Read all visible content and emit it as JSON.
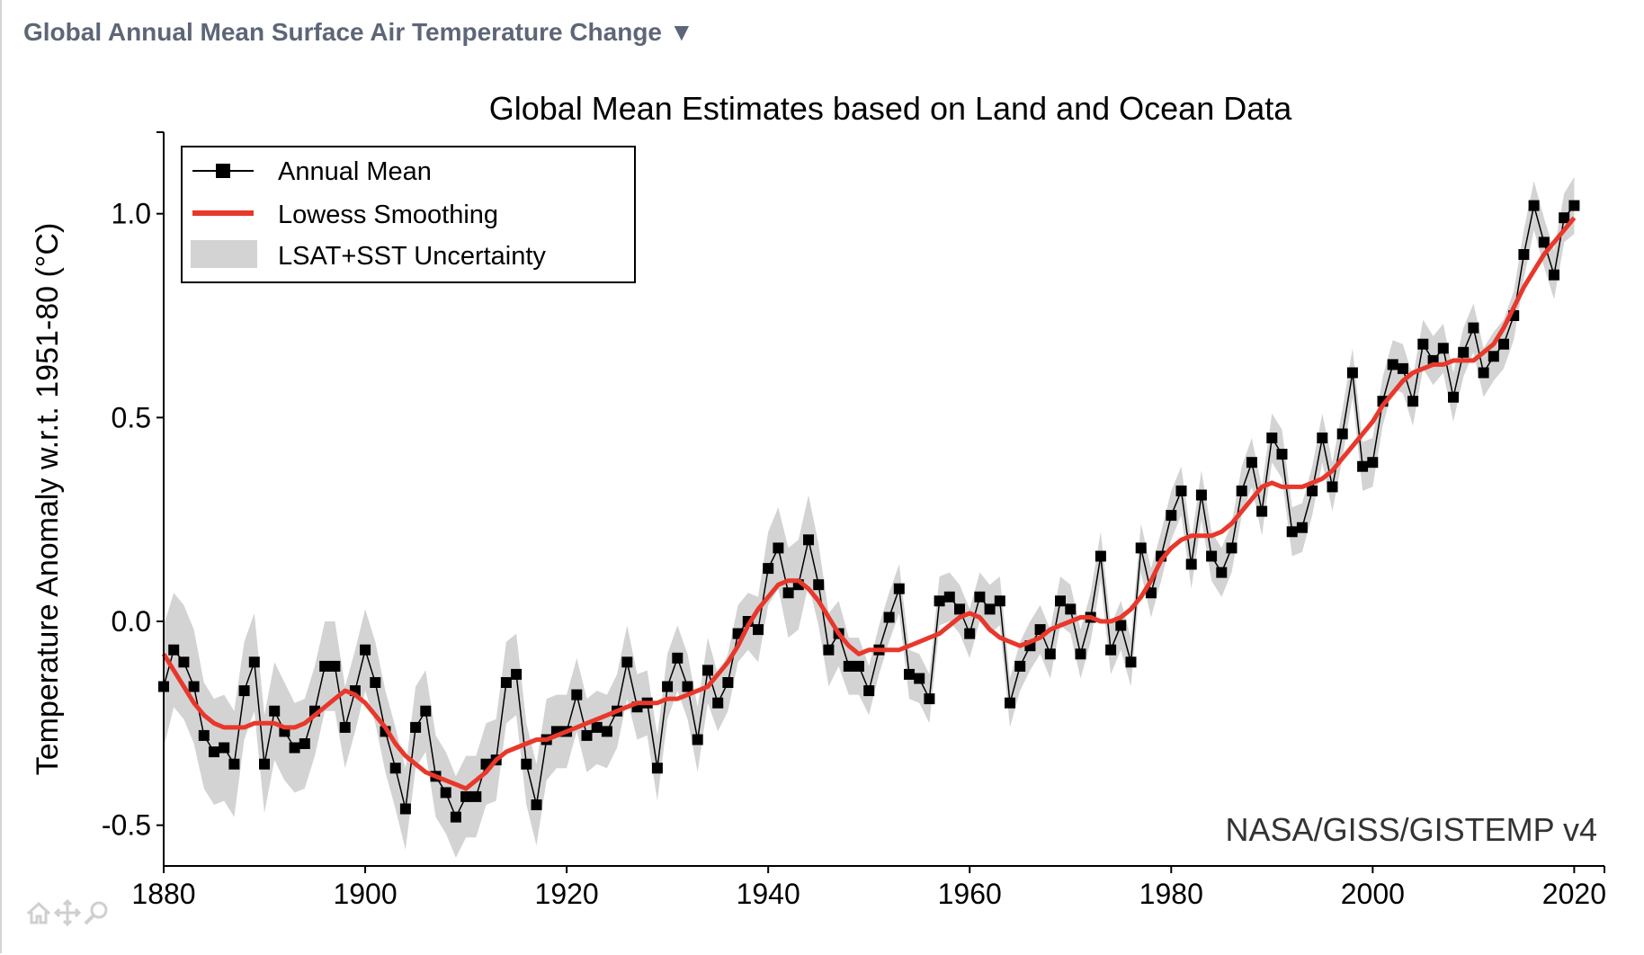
{
  "header": {
    "title": "Global Annual Mean Surface Air Temperature Change",
    "caret": "▼"
  },
  "watermark": "NASA/GISS/GISTEMP v4",
  "colors": {
    "header": "#5d6677",
    "annual": "#000000",
    "smooth": "#e8382b",
    "band": "#d3d3d3"
  },
  "toolbar": {
    "icons": [
      "home-icon",
      "pan-icon",
      "zoom-icon"
    ]
  },
  "chart_data": {
    "type": "line",
    "title": "Global Mean Estimates based on Land and Ocean Data",
    "xlabel": "",
    "ylabel": "Temperature Anomaly w.r.t. 1951-80 (°C)",
    "xlim": [
      1880,
      2023
    ],
    "ylim": [
      -0.6,
      1.2
    ],
    "xticks": [
      1880,
      1900,
      1920,
      1940,
      1960,
      1980,
      2000,
      2020
    ],
    "xtick_labels": [
      "1880",
      "1900",
      "1920",
      "1940",
      "1960",
      "1980",
      "2000",
      "2020"
    ],
    "yticks": [
      -0.5,
      0.0,
      0.5,
      1.0
    ],
    "ytick_labels": [
      "-0.5",
      "0.0",
      "0.5",
      "1.0"
    ],
    "legend": {
      "position": "top-left",
      "entries": [
        "Annual Mean",
        "Lowess Smoothing",
        "LSAT+SST Uncertainty"
      ]
    },
    "grid": false,
    "x": [
      1880,
      1881,
      1882,
      1883,
      1884,
      1885,
      1886,
      1887,
      1888,
      1889,
      1890,
      1891,
      1892,
      1893,
      1894,
      1895,
      1896,
      1897,
      1898,
      1899,
      1900,
      1901,
      1902,
      1903,
      1904,
      1905,
      1906,
      1907,
      1908,
      1909,
      1910,
      1911,
      1912,
      1913,
      1914,
      1915,
      1916,
      1917,
      1918,
      1919,
      1920,
      1921,
      1922,
      1923,
      1924,
      1925,
      1926,
      1927,
      1928,
      1929,
      1930,
      1931,
      1932,
      1933,
      1934,
      1935,
      1936,
      1937,
      1938,
      1939,
      1940,
      1941,
      1942,
      1943,
      1944,
      1945,
      1946,
      1947,
      1948,
      1949,
      1950,
      1951,
      1952,
      1953,
      1954,
      1955,
      1956,
      1957,
      1958,
      1959,
      1960,
      1961,
      1962,
      1963,
      1964,
      1965,
      1966,
      1967,
      1968,
      1969,
      1970,
      1971,
      1972,
      1973,
      1974,
      1975,
      1976,
      1977,
      1978,
      1979,
      1980,
      1981,
      1982,
      1983,
      1984,
      1985,
      1986,
      1987,
      1988,
      1989,
      1990,
      1991,
      1992,
      1993,
      1994,
      1995,
      1996,
      1997,
      1998,
      1999,
      2000,
      2001,
      2002,
      2003,
      2004,
      2005,
      2006,
      2007,
      2008,
      2009,
      2010,
      2011,
      2012,
      2013,
      2014,
      2015,
      2016,
      2017,
      2018,
      2019,
      2020
    ],
    "series": [
      {
        "name": "Annual Mean",
        "values": [
          -0.16,
          -0.07,
          -0.1,
          -0.16,
          -0.28,
          -0.32,
          -0.31,
          -0.35,
          -0.17,
          -0.1,
          -0.35,
          -0.22,
          -0.27,
          -0.31,
          -0.3,
          -0.22,
          -0.11,
          -0.11,
          -0.26,
          -0.17,
          -0.07,
          -0.15,
          -0.27,
          -0.36,
          -0.46,
          -0.26,
          -0.22,
          -0.38,
          -0.42,
          -0.48,
          -0.43,
          -0.43,
          -0.35,
          -0.34,
          -0.15,
          -0.13,
          -0.35,
          -0.45,
          -0.29,
          -0.27,
          -0.27,
          -0.18,
          -0.28,
          -0.26,
          -0.27,
          -0.22,
          -0.1,
          -0.21,
          -0.2,
          -0.36,
          -0.16,
          -0.09,
          -0.16,
          -0.29,
          -0.12,
          -0.2,
          -0.15,
          -0.03,
          0.0,
          -0.02,
          0.13,
          0.18,
          0.07,
          0.09,
          0.2,
          0.09,
          -0.07,
          -0.03,
          -0.11,
          -0.11,
          -0.17,
          -0.07,
          0.01,
          0.08,
          -0.13,
          -0.14,
          -0.19,
          0.05,
          0.06,
          0.03,
          -0.03,
          0.06,
          0.03,
          0.05,
          -0.2,
          -0.11,
          -0.06,
          -0.02,
          -0.08,
          0.05,
          0.03,
          -0.08,
          0.01,
          0.16,
          -0.07,
          -0.01,
          -0.1,
          0.18,
          0.07,
          0.16,
          0.26,
          0.32,
          0.14,
          0.31,
          0.16,
          0.12,
          0.18,
          0.32,
          0.39,
          0.27,
          0.45,
          0.41,
          0.22,
          0.23,
          0.32,
          0.45,
          0.33,
          0.46,
          0.61,
          0.38,
          0.39,
          0.54,
          0.63,
          0.62,
          0.54,
          0.68,
          0.64,
          0.67,
          0.55,
          0.66,
          0.72,
          0.61,
          0.65,
          0.68,
          0.75,
          0.9,
          1.02,
          0.93,
          0.85,
          0.99,
          1.02
        ]
      },
      {
        "name": "Lowess Smoothing",
        "values": [
          -0.08,
          -0.12,
          -0.16,
          -0.2,
          -0.23,
          -0.25,
          -0.26,
          -0.26,
          -0.26,
          -0.25,
          -0.25,
          -0.25,
          -0.26,
          -0.26,
          -0.25,
          -0.23,
          -0.21,
          -0.19,
          -0.17,
          -0.18,
          -0.2,
          -0.23,
          -0.26,
          -0.3,
          -0.33,
          -0.35,
          -0.37,
          -0.38,
          -0.39,
          -0.4,
          -0.41,
          -0.39,
          -0.37,
          -0.34,
          -0.32,
          -0.31,
          -0.3,
          -0.29,
          -0.29,
          -0.28,
          -0.27,
          -0.26,
          -0.25,
          -0.24,
          -0.23,
          -0.22,
          -0.21,
          -0.2,
          -0.2,
          -0.2,
          -0.19,
          -0.19,
          -0.18,
          -0.17,
          -0.16,
          -0.13,
          -0.1,
          -0.06,
          -0.01,
          0.03,
          0.06,
          0.09,
          0.1,
          0.1,
          0.08,
          0.05,
          0.01,
          -0.03,
          -0.06,
          -0.08,
          -0.07,
          -0.07,
          -0.07,
          -0.07,
          -0.06,
          -0.05,
          -0.04,
          -0.03,
          -0.01,
          0.01,
          0.02,
          0.01,
          -0.02,
          -0.04,
          -0.05,
          -0.06,
          -0.05,
          -0.04,
          -0.02,
          -0.01,
          0.0,
          0.01,
          0.01,
          0.0,
          0.0,
          0.01,
          0.03,
          0.06,
          0.1,
          0.15,
          0.18,
          0.2,
          0.21,
          0.21,
          0.21,
          0.22,
          0.24,
          0.27,
          0.3,
          0.33,
          0.34,
          0.33,
          0.33,
          0.33,
          0.34,
          0.35,
          0.37,
          0.4,
          0.43,
          0.46,
          0.49,
          0.53,
          0.56,
          0.59,
          0.61,
          0.62,
          0.63,
          0.63,
          0.64,
          0.64,
          0.64,
          0.66,
          0.68,
          0.72,
          0.77,
          0.82,
          0.86,
          0.9,
          0.93,
          0.96,
          0.99
        ]
      }
    ],
    "uncertainty_halfwidth": [
      0.15,
      0.14,
      0.14,
      0.14,
      0.13,
      0.13,
      0.13,
      0.13,
      0.12,
      0.12,
      0.12,
      0.12,
      0.12,
      0.11,
      0.11,
      0.11,
      0.11,
      0.11,
      0.1,
      0.1,
      0.1,
      0.1,
      0.1,
      0.1,
      0.1,
      0.1,
      0.1,
      0.1,
      0.1,
      0.1,
      0.1,
      0.1,
      0.1,
      0.1,
      0.1,
      0.1,
      0.1,
      0.1,
      0.1,
      0.09,
      0.09,
      0.09,
      0.09,
      0.09,
      0.09,
      0.09,
      0.09,
      0.08,
      0.08,
      0.08,
      0.08,
      0.08,
      0.08,
      0.08,
      0.08,
      0.07,
      0.07,
      0.07,
      0.07,
      0.08,
      0.09,
      0.1,
      0.11,
      0.11,
      0.11,
      0.1,
      0.09,
      0.08,
      0.07,
      0.07,
      0.06,
      0.06,
      0.06,
      0.06,
      0.06,
      0.06,
      0.06,
      0.06,
      0.06,
      0.06,
      0.06,
      0.06,
      0.06,
      0.06,
      0.06,
      0.06,
      0.06,
      0.06,
      0.06,
      0.06,
      0.06,
      0.06,
      0.06,
      0.06,
      0.06,
      0.06,
      0.06,
      0.06,
      0.06,
      0.06,
      0.06,
      0.06,
      0.06,
      0.06,
      0.06,
      0.06,
      0.06,
      0.06,
      0.06,
      0.06,
      0.06,
      0.06,
      0.06,
      0.06,
      0.06,
      0.06,
      0.06,
      0.06,
      0.06,
      0.06,
      0.06,
      0.06,
      0.06,
      0.06,
      0.06,
      0.06,
      0.06,
      0.06,
      0.06,
      0.06,
      0.06,
      0.06,
      0.06,
      0.06,
      0.06,
      0.06,
      0.06,
      0.06,
      0.06,
      0.06,
      0.07
    ]
  }
}
